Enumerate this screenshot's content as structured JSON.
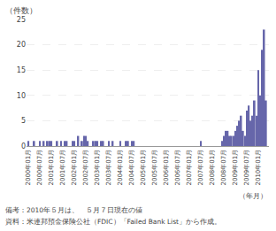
{
  "chart_data": {
    "type": "bar",
    "title": "（件数）",
    "x_label": "（年月）",
    "annotations": [
      "備考：2010年５月は、　５月７日現在の値",
      "資料：米連邦預金保険公社（FDIC）「Failed Bank List」から作成。"
    ],
    "categories": [
      "2000年01月",
      null,
      null,
      null,
      null,
      null,
      "2000年07月",
      null,
      null,
      null,
      null,
      null,
      "2001年01月",
      null,
      null,
      null,
      null,
      null,
      "2001年07月",
      null,
      null,
      null,
      null,
      null,
      "2002年01月",
      null,
      null,
      null,
      null,
      null,
      "2002年07月",
      null,
      null,
      null,
      null,
      null,
      "2003年01月",
      null,
      null,
      null,
      null,
      null,
      "2003年07月",
      null,
      null,
      null,
      null,
      null,
      "2004年01月",
      null,
      null,
      null,
      null,
      null,
      "2004年07月",
      null,
      null,
      null,
      null,
      null,
      "2005年01月",
      null,
      null,
      null,
      null,
      null,
      "2005年07月",
      null,
      null,
      null,
      null,
      null,
      "2006年01月",
      null,
      null,
      null,
      null,
      null,
      "2006年07月",
      null,
      null,
      null,
      null,
      null,
      "2007年01月",
      null,
      null,
      null,
      null,
      null,
      "2007年07月",
      null,
      null,
      null,
      null,
      null,
      "2008年01月",
      null,
      null,
      null,
      null,
      null,
      "2008年07月",
      null,
      null,
      null,
      null,
      null,
      "2009年01月",
      null,
      null,
      null,
      null,
      null,
      "2009年07月",
      null,
      null,
      null,
      null,
      null,
      "2010年01月",
      null,
      null,
      null,
      null
    ],
    "values": [
      1,
      0,
      0,
      1,
      0,
      0,
      1,
      0,
      1,
      0,
      1,
      1,
      1,
      0,
      0,
      1,
      0,
      1,
      0,
      1,
      1,
      0,
      0,
      1,
      1,
      0,
      2,
      0,
      1,
      2,
      2,
      1,
      0,
      0,
      1,
      1,
      1,
      0,
      1,
      1,
      0,
      0,
      1,
      0,
      1,
      0,
      0,
      0,
      1,
      0,
      0,
      1,
      1,
      0,
      1,
      1,
      0,
      0,
      0,
      0,
      0,
      0,
      0,
      0,
      0,
      0,
      0,
      0,
      0,
      0,
      0,
      0,
      0,
      0,
      0,
      0,
      0,
      0,
      0,
      0,
      0,
      0,
      0,
      0,
      0,
      0,
      0,
      0,
      0,
      0,
      1,
      0,
      0,
      0,
      0,
      0,
      0,
      0,
      0,
      0,
      0,
      1,
      2,
      3,
      3,
      2,
      2,
      2,
      3,
      4,
      5,
      6,
      3,
      2,
      7,
      8,
      5,
      6,
      9,
      6,
      15,
      10,
      19,
      23,
      9
    ],
    "color": "#6666aa",
    "ylim": [
      0,
      25
    ],
    "yticks": [
      0,
      5,
      10,
      15,
      20,
      25
    ],
    "grid": true
  }
}
